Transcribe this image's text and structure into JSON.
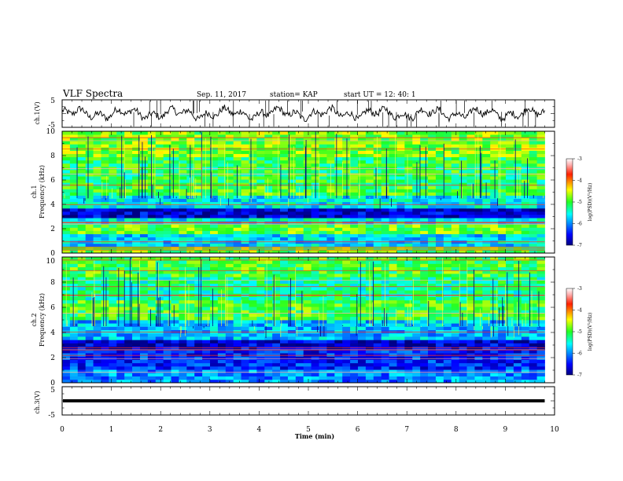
{
  "header": {
    "title": "VLF Spectra",
    "date": "Sep. 11, 2017",
    "station": "station= KAP",
    "start": "start  UT =   12: 40: 1"
  },
  "colorbar_label": "log(PSD)(V²/Hz)",
  "chart_data": {
    "type": "heatmap",
    "xlabel": "Time (min)",
    "xlim": [
      0,
      10
    ],
    "x_ticks": [
      "0",
      "1",
      "2",
      "3",
      "4",
      "5",
      "6",
      "7",
      "8",
      "9",
      "10"
    ],
    "data_end_min": 9.8,
    "panels": [
      {
        "id": "ch1v",
        "type": "line",
        "ylabel": "ch.1(V)",
        "ylim": [
          -5,
          5
        ],
        "y_ticks": [
          "5",
          "-5"
        ]
      },
      {
        "id": "ch1",
        "type": "heatmap",
        "ylabel_line1": "ch.1",
        "ylabel_line2": "Frequency (kHz)",
        "ylim": [
          0,
          10
        ],
        "y_ticks": [
          "0",
          "2",
          "4",
          "6",
          "8",
          "10"
        ],
        "colorbar": {
          "range": [
            -7,
            -3
          ],
          "ticks": [
            "-3",
            "-4",
            "-5",
            "-6",
            "-7"
          ]
        },
        "bands_khz": [
          {
            "range": [
              0,
              0.5
            ],
            "level": -4.9
          },
          {
            "range": [
              0.5,
              1.5
            ],
            "level": -5.7
          },
          {
            "range": [
              1.5,
              2.3
            ],
            "level": -4.9
          },
          {
            "range": [
              2.3,
              2.8
            ],
            "level": -5.6
          },
          {
            "range": [
              2.8,
              3.6
            ],
            "level": -6.7
          },
          {
            "range": [
              3.6,
              4.8
            ],
            "level": -5.6
          },
          {
            "range": [
              4.8,
              5.5
            ],
            "level": -5.0
          },
          {
            "range": [
              5.5,
              8.0
            ],
            "level": -5.1
          },
          {
            "range": [
              8.0,
              10.0
            ],
            "level": -4.8
          }
        ]
      },
      {
        "id": "ch2",
        "type": "heatmap",
        "ylabel_line1": "ch.2",
        "ylabel_line2": "Frequency (kHz)",
        "ylim": [
          0,
          10
        ],
        "y_ticks": [
          "0",
          "2",
          "4",
          "6",
          "8",
          "10"
        ],
        "colorbar": {
          "range": [
            -7,
            -3
          ],
          "ticks": [
            "-3",
            "-4",
            "-5",
            "-6",
            "-7"
          ]
        },
        "bands_khz": [
          {
            "range": [
              0,
              1.0
            ],
            "level": -6.0
          },
          {
            "range": [
              1.0,
              2.5
            ],
            "level": -6.4
          },
          {
            "range": [
              2.5,
              3.5
            ],
            "level": -6.7
          },
          {
            "range": [
              3.5,
              5.0
            ],
            "level": -5.8
          },
          {
            "range": [
              5.0,
              6.5
            ],
            "level": -5.0
          },
          {
            "range": [
              6.5,
              8.5
            ],
            "level": -5.3
          },
          {
            "range": [
              8.5,
              10.0
            ],
            "level": -5.0
          }
        ]
      },
      {
        "id": "ch3v",
        "type": "line",
        "ylabel": "ch.3(V)",
        "ylim": [
          -5,
          5
        ],
        "y_ticks": [
          "5",
          "-5"
        ],
        "flat_value": 0
      }
    ]
  }
}
